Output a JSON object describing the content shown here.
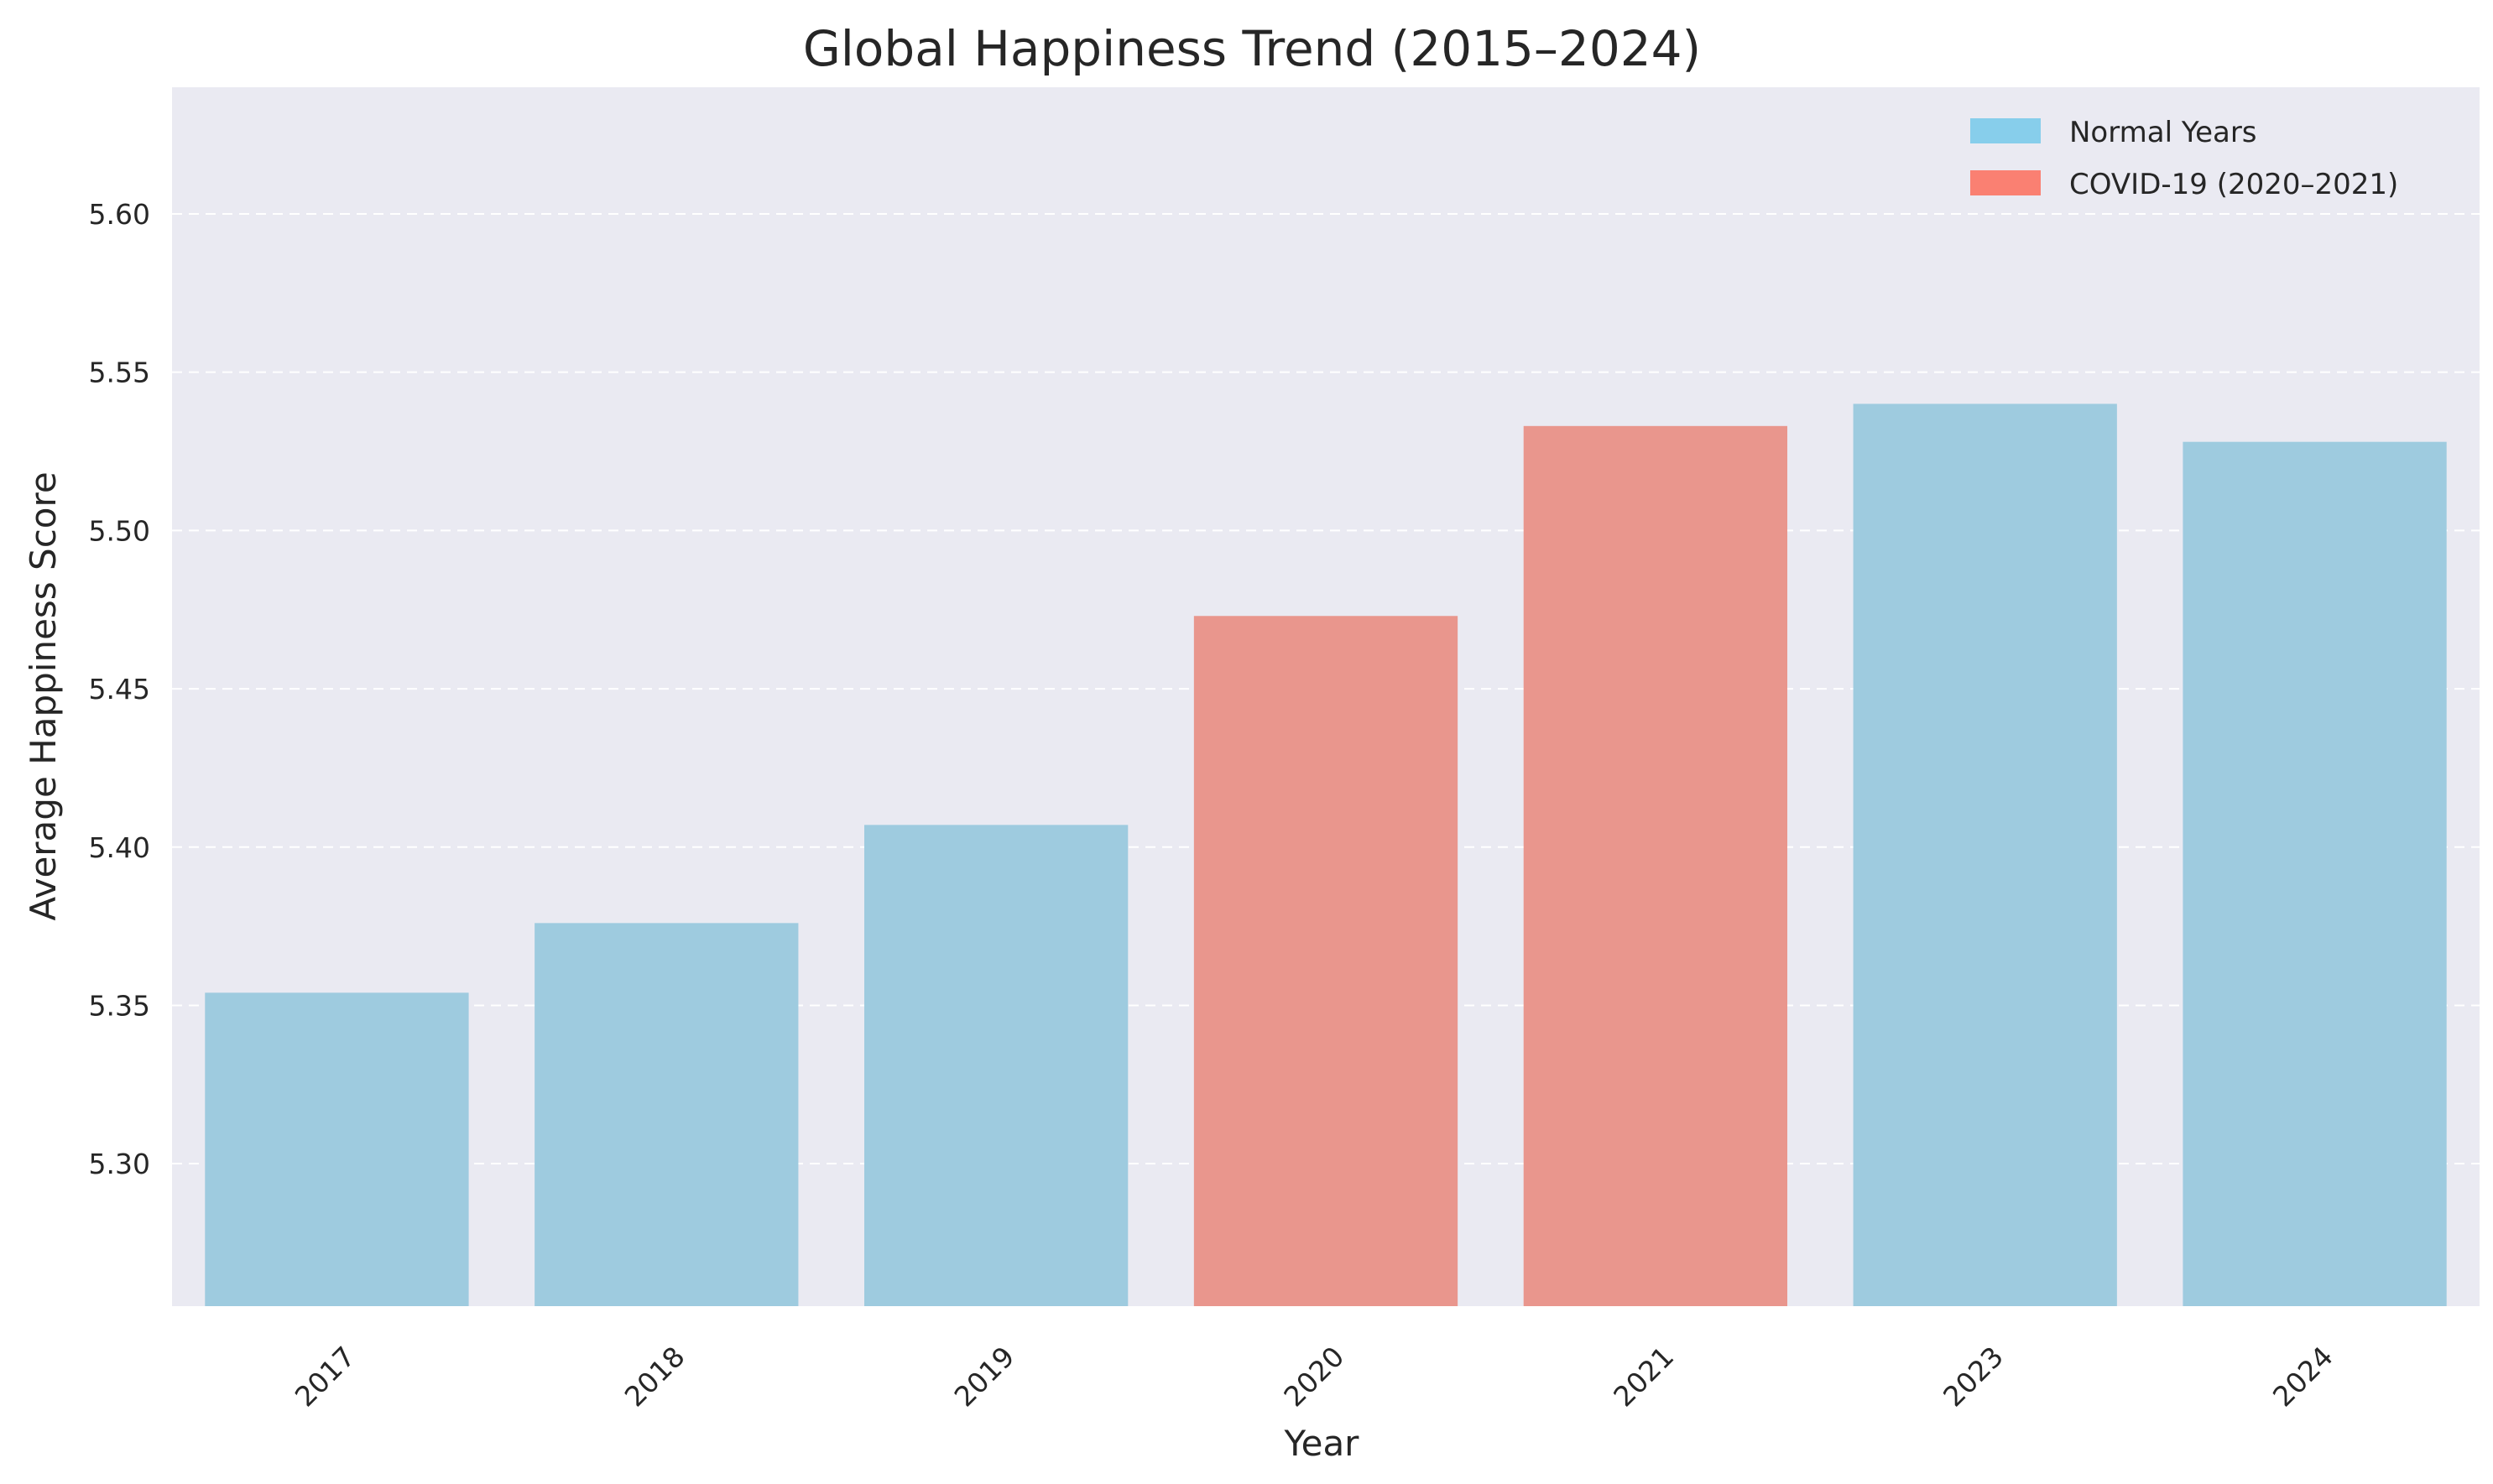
{
  "chart_data": {
    "type": "bar",
    "title": "Global Happiness Trend (2015–2024)",
    "xlabel": "Year",
    "ylabel": "Average Happiness Score",
    "categories": [
      "2017",
      "2018",
      "2019",
      "2020",
      "2021",
      "2023",
      "2024"
    ],
    "values": [
      5.354,
      5.376,
      5.407,
      5.473,
      5.533,
      5.54,
      5.528
    ],
    "bar_groups": [
      "normal",
      "normal",
      "normal",
      "covid",
      "covid",
      "normal",
      "normal"
    ],
    "ylim": [
      5.255,
      5.64
    ],
    "yticks": [
      5.3,
      5.35,
      5.4,
      5.45,
      5.5,
      5.55,
      5.6
    ],
    "ytick_labels": [
      "5.30",
      "5.35",
      "5.40",
      "5.45",
      "5.50",
      "5.55",
      "5.60"
    ],
    "grid": "y-dashed",
    "legend_position": "top-right",
    "legend": [
      {
        "key": "normal",
        "label": "Normal Years",
        "color": "#87ceeb"
      },
      {
        "key": "covid",
        "label": "COVID-19 (2020–2021)",
        "color": "#fa8072"
      }
    ],
    "bar_colors": {
      "normal": "#9ecbdf",
      "covid": "#e9968d"
    },
    "background_color": "#eaeaf2"
  }
}
